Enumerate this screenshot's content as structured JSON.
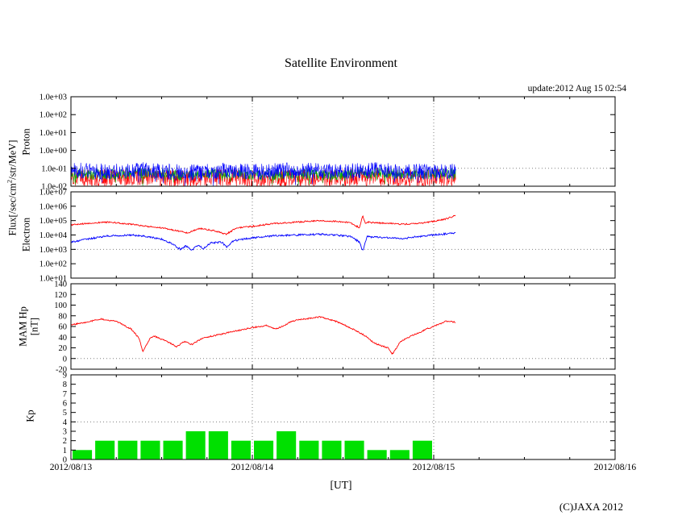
{
  "page": {
    "title": "Satellite Environment",
    "update_text": "update:2012 Aug 15 02:54",
    "xaxis_title": "[UT]",
    "copyright": "(C)JAXA 2012",
    "flux_label": {
      "prefix": "Flux[/sec/cm",
      "sup": "2",
      "suffix": "/str/MeV]"
    }
  },
  "x_axis": {
    "t_start_hours": 0,
    "t_end_hours": 72,
    "tick_labels": [
      {
        "t": 0,
        "label": "2012/08/13"
      },
      {
        "t": 24,
        "label": "2012/08/14"
      },
      {
        "t": 48,
        "label": "2012/08/15"
      },
      {
        "t": 72,
        "label": "2012/08/16"
      }
    ],
    "grid_hours": [
      24,
      48
    ],
    "minor_tick_hours": 6
  },
  "chart_data": [
    {
      "id": "proton",
      "type": "line",
      "side_label": "Proton",
      "y_scale": "log",
      "y_min_exp": -2,
      "y_max_exp": 3,
      "y_ticks": [
        {
          "v": 3,
          "label": "1.0e+03"
        },
        {
          "v": 2,
          "label": "1.0e+02"
        },
        {
          "v": 1,
          "label": "1.0e+01"
        },
        {
          "v": 0,
          "label": "1.0e+00"
        },
        {
          "v": -1,
          "label": "1.0e-01"
        },
        {
          "v": -2,
          "label": "1.0e-02"
        }
      ],
      "y_grid": [
        -1
      ],
      "series": [
        {
          "name": "proton-red",
          "color": "#ff0000",
          "noise": 0.5,
          "t": [
            0,
            5,
            10,
            15,
            20,
            25,
            30,
            35,
            40,
            45,
            50.9
          ],
          "v": [
            -1.5,
            -1.55,
            -1.45,
            -1.6,
            -1.5,
            -1.6,
            -1.5,
            -1.55,
            -1.45,
            -1.55,
            -1.5
          ]
        },
        {
          "name": "proton-green",
          "color": "#00b000",
          "noise": 0.3,
          "t": [
            0,
            5,
            10,
            15,
            20,
            25,
            30,
            35,
            40,
            45,
            50.9
          ],
          "v": [
            -1.3,
            -1.35,
            -1.25,
            -1.4,
            -1.3,
            -1.35,
            -1.3,
            -1.35,
            -1.25,
            -1.35,
            -1.3
          ]
        },
        {
          "name": "proton-blue",
          "color": "#0000ff",
          "noise": 0.45,
          "t": [
            0,
            5,
            10,
            15,
            20,
            25,
            30,
            35,
            40,
            45,
            50.9
          ],
          "v": [
            -1.1,
            -1.2,
            -1.1,
            -1.25,
            -1.15,
            -1.2,
            -1.1,
            -1.2,
            -1.1,
            -1.2,
            -1.15
          ]
        }
      ]
    },
    {
      "id": "electron",
      "type": "line",
      "side_label": "Electron",
      "y_scale": "log",
      "y_min_exp": 1,
      "y_max_exp": 7,
      "y_ticks": [
        {
          "v": 7,
          "label": "1.0e+07"
        },
        {
          "v": 6,
          "label": "1.0e+06"
        },
        {
          "v": 5,
          "label": "1.0e+05"
        },
        {
          "v": 4,
          "label": "1.0e+04"
        },
        {
          "v": 3,
          "label": "1.0e+03"
        },
        {
          "v": 2,
          "label": "1.0e+02"
        },
        {
          "v": 1,
          "label": "1.0e+01"
        }
      ],
      "y_grid": [
        3
      ],
      "series": [
        {
          "name": "electron-red",
          "color": "#ff0000",
          "noise": 0.05,
          "t": [
            0,
            2,
            5,
            8,
            10,
            12,
            14,
            15.5,
            17,
            19,
            20.5,
            22,
            24,
            27,
            30,
            33,
            35,
            37,
            38.2,
            38.6,
            39,
            39.4,
            40,
            42,
            44,
            46,
            48,
            49.5,
            50.9
          ],
          "v": [
            4.7,
            4.8,
            4.9,
            4.75,
            4.6,
            4.5,
            4.3,
            4.15,
            4.45,
            4.3,
            4.05,
            4.5,
            4.6,
            4.8,
            4.9,
            5.0,
            4.95,
            4.85,
            4.5,
            5.35,
            4.8,
            4.9,
            4.85,
            4.8,
            4.75,
            4.8,
            4.95,
            5.1,
            5.35
          ]
        },
        {
          "name": "electron-blue",
          "color": "#0000ff",
          "noise": 0.06,
          "t": [
            0,
            2,
            5,
            8,
            10,
            12,
            13.5,
            14.5,
            15.2,
            16,
            16.8,
            17.5,
            18.5,
            20,
            20.6,
            21.5,
            24,
            27,
            30,
            33,
            35,
            37,
            38.2,
            38.6,
            39.2,
            40,
            42,
            44,
            46,
            48,
            50,
            50.9
          ],
          "v": [
            3.5,
            3.7,
            3.95,
            4.0,
            3.9,
            3.7,
            3.35,
            3.0,
            3.25,
            2.95,
            3.3,
            3.05,
            3.45,
            3.5,
            3.15,
            3.6,
            3.8,
            3.95,
            4.0,
            4.05,
            4.0,
            3.9,
            3.5,
            2.9,
            3.9,
            3.85,
            3.8,
            3.75,
            3.9,
            4.0,
            4.1,
            4.15
          ]
        }
      ]
    },
    {
      "id": "mam-hp",
      "type": "line",
      "side_label": "MAM Hp",
      "side_label2": "[nT]",
      "y_scale": "linear",
      "y_min": -20,
      "y_max": 140,
      "y_ticks": [
        {
          "v": 140,
          "label": "140"
        },
        {
          "v": 120,
          "label": "120"
        },
        {
          "v": 100,
          "label": "100"
        },
        {
          "v": 80,
          "label": "80"
        },
        {
          "v": 60,
          "label": "60"
        },
        {
          "v": 40,
          "label": "40"
        },
        {
          "v": 20,
          "label": "20"
        },
        {
          "v": 0,
          "label": "0"
        },
        {
          "v": -20,
          "label": "-20"
        }
      ],
      "y_grid": [
        0
      ],
      "series": [
        {
          "name": "hp",
          "color": "#ff0000",
          "noise": 1.2,
          "t": [
            0,
            2,
            4,
            5,
            6,
            7,
            8,
            9,
            9.5,
            10,
            10.5,
            11,
            12,
            13,
            14,
            15,
            16,
            17,
            18,
            20,
            22,
            24,
            26,
            27,
            28,
            29,
            30,
            31,
            32,
            33,
            34,
            35,
            36,
            37,
            38,
            39,
            40,
            41,
            42,
            42.5,
            43,
            43.5,
            44,
            45,
            46,
            47,
            48,
            49,
            49.5,
            50.9
          ],
          "v": [
            63,
            68,
            74,
            72,
            70,
            62,
            55,
            38,
            14,
            25,
            38,
            42,
            36,
            30,
            22,
            32,
            26,
            35,
            40,
            46,
            52,
            58,
            62,
            55,
            60,
            68,
            72,
            74,
            76,
            78,
            74,
            70,
            64,
            57,
            50,
            42,
            30,
            24,
            20,
            8,
            18,
            30,
            35,
            42,
            48,
            55,
            60,
            66,
            70,
            68
          ]
        }
      ]
    },
    {
      "id": "kp",
      "type": "bar",
      "side_label": "Kp",
      "y_scale": "linear",
      "y_min": 0,
      "y_max": 9,
      "y_ticks": [
        {
          "v": 9,
          "label": "9"
        },
        {
          "v": 8,
          "label": "8"
        },
        {
          "v": 7,
          "label": "7"
        },
        {
          "v": 6,
          "label": "6"
        },
        {
          "v": 5,
          "label": "5"
        },
        {
          "v": 4,
          "label": "4"
        },
        {
          "v": 3,
          "label": "3"
        },
        {
          "v": 2,
          "label": "2"
        },
        {
          "v": 1,
          "label": "1"
        },
        {
          "v": 0,
          "label": "0"
        }
      ],
      "y_grid": [
        4
      ],
      "bar_color": "#00e000",
      "interval_hours": 3,
      "start_hour": 0,
      "values": [
        1,
        2,
        2,
        2,
        2,
        3,
        3,
        2,
        2,
        3,
        2,
        2,
        2,
        1,
        1,
        2
      ]
    }
  ]
}
